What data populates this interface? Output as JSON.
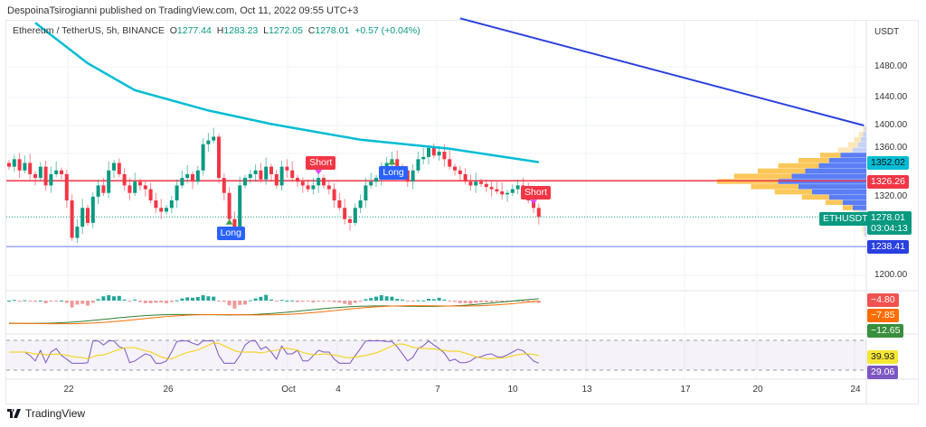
{
  "header": {
    "published": "DespoinaTsirogianni published on TradingView.com, Oct 11, 2022 09:55 UTC+3"
  },
  "legend": {
    "symbol": "Ethereum / TetherUS, 5h, BINANCE",
    "o_label": "O",
    "o": "1277.44",
    "h_label": "H",
    "h": "1283.23",
    "l_label": "L",
    "l": "1272.05",
    "c_label": "C",
    "c": "1278.01",
    "change": "+0.57 (+0.04%)"
  },
  "price_axis": {
    "unit": "USDT",
    "ticks": [
      "1480.00",
      "1440.00",
      "1400.00",
      "1360.00",
      "1320.00",
      "1200.00"
    ]
  },
  "time_axis": {
    "ticks": [
      "22",
      "26",
      "Oct",
      "4",
      "7",
      "10",
      "13",
      "17",
      "20",
      "24"
    ]
  },
  "badges": {
    "ma": "1352.02",
    "red_line": "1326.26",
    "symbol": "ETHUSDT",
    "last": "1278.01",
    "countdown": "03:04:13",
    "blue_line": "1238.41",
    "macd1": "−4.80",
    "macd2": "−7.85",
    "macd3": "−12.65",
    "rsi_ma": "39.93",
    "rsi": "29.06"
  },
  "signals": [
    {
      "label": "Short",
      "type": "short"
    },
    {
      "label": "Long",
      "type": "long"
    },
    {
      "label": "Long",
      "type": "long"
    },
    {
      "label": "Short",
      "type": "short"
    }
  ],
  "footer": {
    "brand": "TradingView"
  },
  "colors": {
    "up": "#089981",
    "down": "#f23645",
    "ma": "#00bcd4",
    "trend": "#2a3fe0",
    "red_line": "#f23645",
    "blue_line": "#2a3fe0",
    "rsi": "#7e57c2",
    "rsi_ma": "#f5d000"
  },
  "chart_data": {
    "type": "candlestick",
    "ylim": [
      1175,
      1530
    ],
    "closes": [
      1345,
      1355,
      1340,
      1350,
      1335,
      1330,
      1345,
      1320,
      1335,
      1340,
      1335,
      1300,
      1250,
      1265,
      1290,
      1270,
      1305,
      1320,
      1310,
      1340,
      1350,
      1335,
      1320,
      1310,
      1325,
      1320,
      1315,
      1300,
      1290,
      1285,
      1290,
      1300,
      1320,
      1330,
      1335,
      1325,
      1340,
      1375,
      1380,
      1385,
      1330,
      1310,
      1275,
      1265,
      1320,
      1330,
      1335,
      1340,
      1328,
      1345,
      1335,
      1320,
      1345,
      1340,
      1330,
      1325,
      1320,
      1315,
      1320,
      1330,
      1320,
      1315,
      1300,
      1290,
      1275,
      1270,
      1290,
      1300,
      1320,
      1325,
      1330,
      1345,
      1350,
      1355,
      1345,
      1340,
      1325,
      1340,
      1355,
      1358,
      1370,
      1360,
      1365,
      1355,
      1345,
      1340,
      1335,
      1325,
      1320,
      1325,
      1322,
      1318,
      1315,
      1312,
      1308,
      1310,
      1315,
      1320,
      1312,
      1300,
      1290,
      1278
    ],
    "ma_points": [
      [
        5,
        1537
      ],
      [
        15,
        1483
      ],
      [
        24,
        1447
      ],
      [
        38,
        1420
      ],
      [
        50,
        1402
      ],
      [
        67,
        1381
      ],
      [
        84,
        1369
      ],
      [
        101,
        1351
      ]
    ],
    "trendline": [
      [
        86,
        1543
      ],
      [
        163,
        1400
      ]
    ],
    "levels": {
      "red": 1326.26,
      "blue": 1238.41,
      "last": 1278.01
    },
    "volume_profile": {
      "prices": [
        1395,
        1388,
        1381,
        1374,
        1367,
        1360,
        1353,
        1346,
        1339,
        1332,
        1325,
        1318,
        1311,
        1304,
        1297,
        1290,
        1283,
        1276,
        1269,
        1262,
        1255
      ],
      "up": [
        3,
        6,
        10,
        15,
        22,
        30,
        45,
        60,
        70,
        85,
        90,
        70,
        55,
        40,
        25,
        15,
        8,
        5,
        4,
        3,
        2
      ],
      "down": [
        2,
        5,
        8,
        12,
        20,
        38,
        55,
        70,
        90,
        110,
        130,
        100,
        80,
        55,
        35,
        20,
        10,
        6,
        4,
        3,
        2
      ]
    },
    "signal_index": [
      59,
      42,
      73,
      100
    ]
  }
}
